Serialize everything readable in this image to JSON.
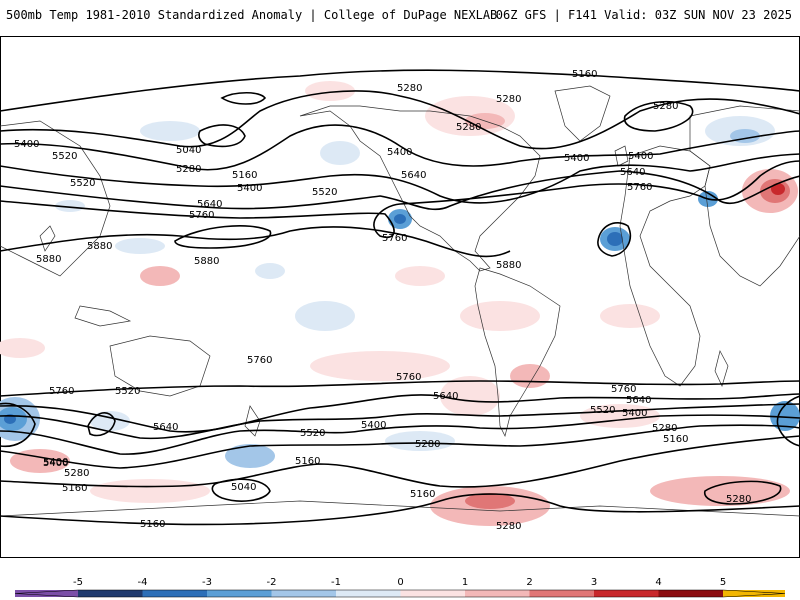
{
  "header": {
    "title": "500mb Temp 1981-2010 Standardized Anomaly | College of DuPage NEXLAB",
    "run_info": "06Z GFS | F141 Valid: 03Z SUN NOV 23 2025"
  },
  "map": {
    "contour_labels": [
      "5160",
      "5280",
      "5280",
      "5280",
      "5280",
      "5400",
      "5400",
      "5040",
      "5280",
      "5160",
      "5400",
      "5520",
      "5400",
      "5640",
      "5520",
      "5400",
      "5640",
      "5760",
      "5520",
      "5640",
      "5760",
      "5760",
      "5880",
      "5880",
      "5880",
      "5880",
      "5760",
      "5760",
      "5640",
      "5760",
      "5520",
      "5760",
      "5640",
      "5400",
      "5520",
      "5400",
      "5280",
      "5160",
      "5520",
      "5400",
      "5280",
      "5160",
      "5400",
      "5280",
      "5160",
      "5040",
      "5160",
      "5160",
      "5280",
      "5280",
      "5640"
    ]
  },
  "legend": {
    "ticks": [
      "-5",
      "-4",
      "-3",
      "-2",
      "-1",
      "0",
      "1",
      "2",
      "3",
      "4",
      "5"
    ],
    "colors": [
      "#7b4fa8",
      "#1f3a6e",
      "#2c6fb8",
      "#5b9fd6",
      "#a3c6e8",
      "#dde9f5",
      "#fbe2e2",
      "#f3b8b8",
      "#e07676",
      "#c8282c",
      "#8b0d10",
      "#f2b600"
    ]
  }
}
